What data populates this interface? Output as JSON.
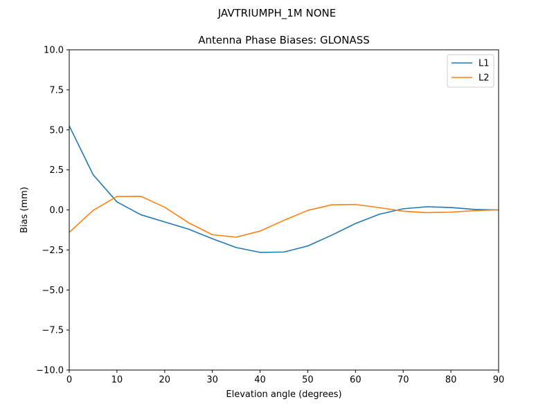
{
  "chart_data": {
    "type": "line",
    "suptitle": "JAVTRIUMPH_1M   NONE",
    "title": "Antenna Phase Biases: GLONASS",
    "xlabel": "Elevation angle (degrees)",
    "ylabel": "Bias (mm)",
    "xlim": [
      0,
      90
    ],
    "ylim": [
      -10,
      10
    ],
    "xticks": [
      0,
      10,
      20,
      30,
      40,
      50,
      60,
      70,
      80,
      90
    ],
    "yticks": [
      -10.0,
      -7.5,
      -5.0,
      -2.5,
      0.0,
      2.5,
      5.0,
      7.5,
      10.0
    ],
    "xtick_labels": [
      "0",
      "10",
      "20",
      "30",
      "40",
      "50",
      "60",
      "70",
      "80",
      "90"
    ],
    "ytick_labels": [
      "−10.0",
      "−7.5",
      "−5.0",
      "−2.5",
      "0.0",
      "2.5",
      "5.0",
      "7.5",
      "10.0"
    ],
    "grid": false,
    "legend_position": "top-right",
    "x": [
      0,
      5,
      10,
      15,
      20,
      25,
      30,
      35,
      40,
      45,
      50,
      55,
      60,
      65,
      70,
      75,
      80,
      85,
      90
    ],
    "series": [
      {
        "name": "L1",
        "color": "#1f77b4",
        "values": [
          5.25,
          2.2,
          0.5,
          -0.3,
          -0.75,
          -1.2,
          -1.8,
          -2.35,
          -2.65,
          -2.63,
          -2.25,
          -1.58,
          -0.85,
          -0.27,
          0.07,
          0.2,
          0.15,
          0.03,
          0.0
        ]
      },
      {
        "name": "L2",
        "color": "#ff7f0e",
        "values": [
          -1.4,
          -0.03,
          0.84,
          0.85,
          0.17,
          -0.8,
          -1.55,
          -1.7,
          -1.32,
          -0.65,
          -0.03,
          0.32,
          0.34,
          0.14,
          -0.08,
          -0.17,
          -0.14,
          -0.04,
          0.0
        ]
      }
    ]
  }
}
